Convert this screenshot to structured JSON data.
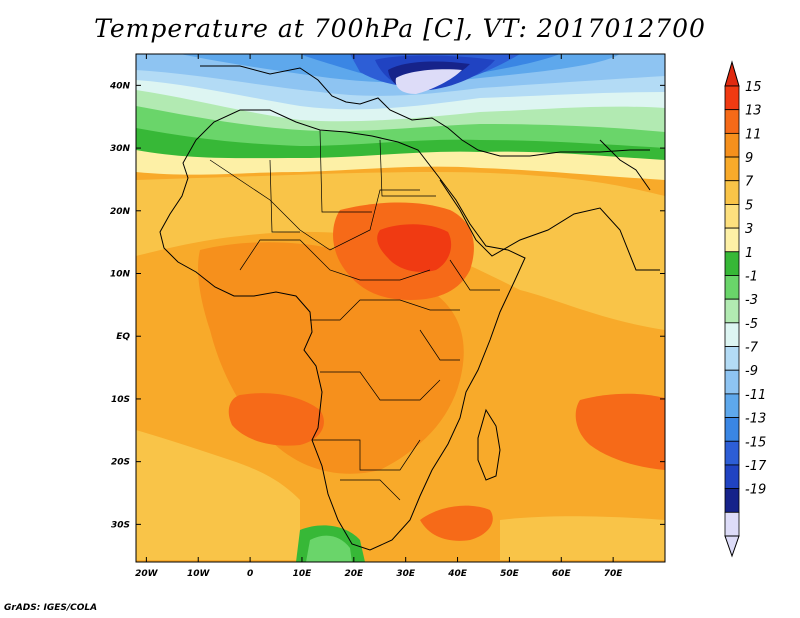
{
  "title": "Temperature at 700hPa [C], VT: 2017012700",
  "credit": "GrADS: IGES/COLA",
  "map": {
    "projection": "latlon",
    "lon_range": [
      -22,
      80
    ],
    "lat_range": [
      -36,
      45
    ],
    "x_ticks": [
      {
        "lon": -20,
        "label": "20W"
      },
      {
        "lon": -10,
        "label": "10W"
      },
      {
        "lon": 0,
        "label": "0"
      },
      {
        "lon": 10,
        "label": "10E"
      },
      {
        "lon": 20,
        "label": "20E"
      },
      {
        "lon": 30,
        "label": "30E"
      },
      {
        "lon": 40,
        "label": "40E"
      },
      {
        "lon": 50,
        "label": "50E"
      },
      {
        "lon": 60,
        "label": "60E"
      },
      {
        "lon": 70,
        "label": "70E"
      }
    ],
    "y_ticks": [
      {
        "lat": 40,
        "label": "40N"
      },
      {
        "lat": 30,
        "label": "30N"
      },
      {
        "lat": 20,
        "label": "20N"
      },
      {
        "lat": 10,
        "label": "10N"
      },
      {
        "lat": 0,
        "label": "EQ"
      },
      {
        "lat": -10,
        "label": "10S"
      },
      {
        "lat": -20,
        "label": "20S"
      },
      {
        "lat": -30,
        "label": "30S"
      }
    ],
    "colorbar": {
      "levels": [
        "15",
        "13",
        "11",
        "9",
        "7",
        "5",
        "3",
        "1",
        "-1",
        "-3",
        "-5",
        "-7",
        "-9",
        "-11",
        "-13",
        "-15",
        "-17",
        "-19"
      ],
      "colors": [
        "#f03a12",
        "#f66a18",
        "#f6901c",
        "#f8aa2a",
        "#f9c448",
        "#fde07e",
        "#fdf0a6",
        "#37b837",
        "#6ad56a",
        "#b2eab2",
        "#ddf5f2",
        "#b3dbf5",
        "#8ec4f2",
        "#5ea8ec",
        "#3a86e4",
        "#2d5ed6",
        "#2043c2",
        "#16238a",
        "#dddcf8"
      ],
      "top_arrow_color": "#e02a10",
      "bottom_arrow_color": "#dddcf8"
    }
  }
}
